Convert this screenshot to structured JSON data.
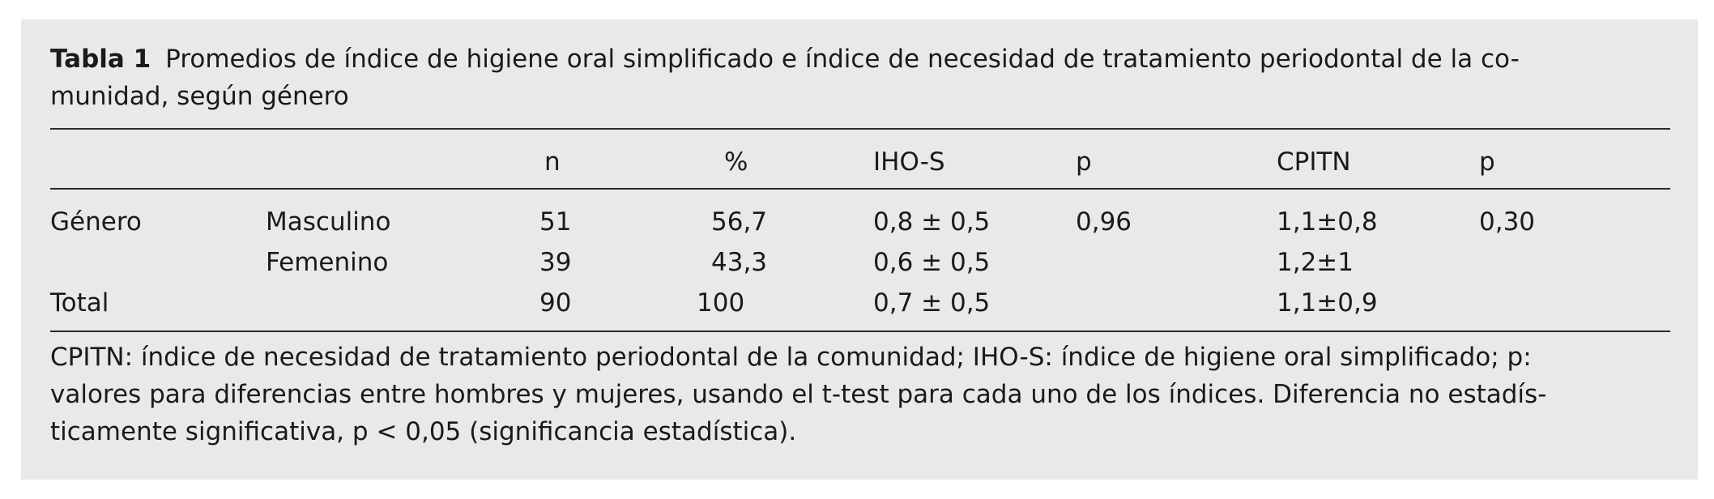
{
  "caption": {
    "label": "Tabla 1",
    "line1": "Promedios de índice de higiene oral simplificado e índice de necesidad de tratamiento periodontal de la co-",
    "line2": "munidad, según género"
  },
  "table": {
    "headers": [
      "",
      "",
      "n",
      "%",
      "IHO-S",
      "p",
      "CPITN",
      "p"
    ],
    "rows": [
      [
        "Género",
        "Masculino",
        "51",
        "56,7",
        "0,8 ± 0,5",
        "0,96",
        "1,1±0,8",
        "0,30"
      ],
      [
        "",
        "Femenino",
        "39",
        "43,3",
        "0,6 ± 0,5",
        "",
        "1,2±1",
        ""
      ],
      [
        "Total",
        "",
        "90",
        "100",
        "0,7 ± 0,5",
        "",
        "1,1±0,9",
        ""
      ]
    ]
  },
  "footnote": {
    "line1": "CPITN: índice de necesidad de tratamiento periodontal de la comunidad; IHO-S: índice de higiene oral simplificado; p:",
    "line2": "valores para diferencias entre hombres y mujeres, usando el t-test para cada uno de los índices. Diferencia no estadís-",
    "line3": "ticamente significativa, p < 0,05 (significancia estadística)."
  }
}
